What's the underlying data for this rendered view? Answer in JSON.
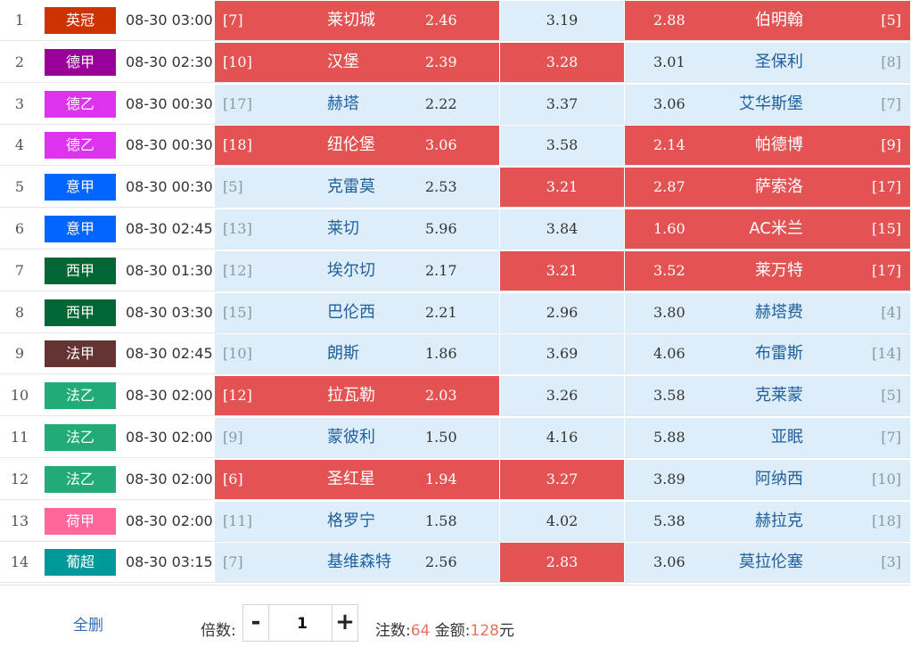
{
  "matches": [
    {
      "no": "1",
      "league": "英冠",
      "league_color": "#cc3300",
      "time": "08-30 03:00",
      "home_rank": "[7]",
      "home": "莱切城",
      "home_odds": "2.46",
      "draw_odds": "3.19",
      "away_odds": "2.88",
      "away": "伯明翰",
      "away_rank": "[5]",
      "sel": [
        true,
        false,
        true
      ]
    },
    {
      "no": "2",
      "league": "德甲",
      "league_color": "#990099",
      "time": "08-30 02:30",
      "home_rank": "[10]",
      "home": "汉堡",
      "home_odds": "2.39",
      "draw_odds": "3.28",
      "away_odds": "3.01",
      "away": "圣保利",
      "away_rank": "[8]",
      "sel": [
        true,
        true,
        false
      ]
    },
    {
      "no": "3",
      "league": "德乙",
      "league_color": "#dd33ee",
      "time": "08-30 00:30",
      "home_rank": "[17]",
      "home": "赫塔",
      "home_odds": "2.22",
      "draw_odds": "3.37",
      "away_odds": "3.06",
      "away": "艾华斯堡",
      "away_rank": "[7]",
      "sel": [
        false,
        false,
        false
      ]
    },
    {
      "no": "4",
      "league": "德乙",
      "league_color": "#dd33ee",
      "time": "08-30 00:30",
      "home_rank": "[18]",
      "home": "纽伦堡",
      "home_odds": "3.06",
      "draw_odds": "3.58",
      "away_odds": "2.14",
      "away": "帕德博",
      "away_rank": "[9]",
      "sel": [
        true,
        false,
        true
      ]
    },
    {
      "no": "5",
      "league": "意甲",
      "league_color": "#0066ff",
      "time": "08-30 00:30",
      "home_rank": "[5]",
      "home": "克雷莫",
      "home_odds": "2.53",
      "draw_odds": "3.21",
      "away_odds": "2.87",
      "away": "萨索洛",
      "away_rank": "[17]",
      "sel": [
        false,
        true,
        true
      ]
    },
    {
      "no": "6",
      "league": "意甲",
      "league_color": "#0066ff",
      "time": "08-30 02:45",
      "home_rank": "[13]",
      "home": "莱切",
      "home_odds": "5.96",
      "draw_odds": "3.84",
      "away_odds": "1.60",
      "away": "AC米兰",
      "away_rank": "[15]",
      "sel": [
        false,
        false,
        true
      ]
    },
    {
      "no": "7",
      "league": "西甲",
      "league_color": "#006633",
      "time": "08-30 01:30",
      "home_rank": "[12]",
      "home": "埃尔切",
      "home_odds": "2.17",
      "draw_odds": "3.21",
      "away_odds": "3.52",
      "away": "莱万特",
      "away_rank": "[17]",
      "sel": [
        false,
        true,
        true
      ]
    },
    {
      "no": "8",
      "league": "西甲",
      "league_color": "#006633",
      "time": "08-30 03:30",
      "home_rank": "[15]",
      "home": "巴伦西",
      "home_odds": "2.21",
      "draw_odds": "2.96",
      "away_odds": "3.80",
      "away": "赫塔费",
      "away_rank": "[4]",
      "sel": [
        false,
        false,
        false
      ]
    },
    {
      "no": "9",
      "league": "法甲",
      "league_color": "#663333",
      "time": "08-30 02:45",
      "home_rank": "[10]",
      "home": "朗斯",
      "home_odds": "1.86",
      "draw_odds": "3.69",
      "away_odds": "4.06",
      "away": "布雷斯",
      "away_rank": "[14]",
      "sel": [
        false,
        false,
        false
      ]
    },
    {
      "no": "10",
      "league": "法乙",
      "league_color": "#22aa77",
      "time": "08-30 02:00",
      "home_rank": "[12]",
      "home": "拉瓦勒",
      "home_odds": "2.03",
      "draw_odds": "3.26",
      "away_odds": "3.58",
      "away": "克莱蒙",
      "away_rank": "[5]",
      "sel": [
        true,
        false,
        false
      ]
    },
    {
      "no": "11",
      "league": "法乙",
      "league_color": "#22aa77",
      "time": "08-30 02:00",
      "home_rank": "[9]",
      "home": "蒙彼利",
      "home_odds": "1.50",
      "draw_odds": "4.16",
      "away_odds": "5.88",
      "away": "亚眠",
      "away_rank": "[7]",
      "sel": [
        false,
        false,
        false
      ]
    },
    {
      "no": "12",
      "league": "法乙",
      "league_color": "#22aa77",
      "time": "08-30 02:00",
      "home_rank": "[6]",
      "home": "圣红星",
      "home_odds": "1.94",
      "draw_odds": "3.27",
      "away_odds": "3.89",
      "away": "阿纳西",
      "away_rank": "[10]",
      "sel": [
        true,
        true,
        false
      ]
    },
    {
      "no": "13",
      "league": "荷甲",
      "league_color": "#ff6699",
      "time": "08-30 02:00",
      "home_rank": "[11]",
      "home": "格罗宁",
      "home_odds": "1.58",
      "draw_odds": "4.02",
      "away_odds": "5.38",
      "away": "赫拉克",
      "away_rank": "[18]",
      "sel": [
        false,
        false,
        false
      ]
    },
    {
      "no": "14",
      "league": "葡超",
      "league_color": "#009999",
      "time": "08-30 03:15",
      "home_rank": "[7]",
      "home": "基维森特",
      "home_odds": "2.56",
      "draw_odds": "2.83",
      "away_odds": "3.06",
      "away": "莫拉伦塞",
      "away_rank": "[3]",
      "sel": [
        false,
        true,
        false
      ]
    }
  ],
  "footer": {
    "clear_label": "全删",
    "multiplier_label": "倍数:",
    "minus_label": "-",
    "multiplier_value": "1",
    "plus_label": "+",
    "bets_label": "注数:",
    "bets_value": "64",
    "amount_label": "金额:",
    "amount_value": "128",
    "amount_unit": "元"
  },
  "colors": {
    "selected": "#e35353",
    "unselected": "#ddeefa",
    "accent": "#e8725c"
  }
}
